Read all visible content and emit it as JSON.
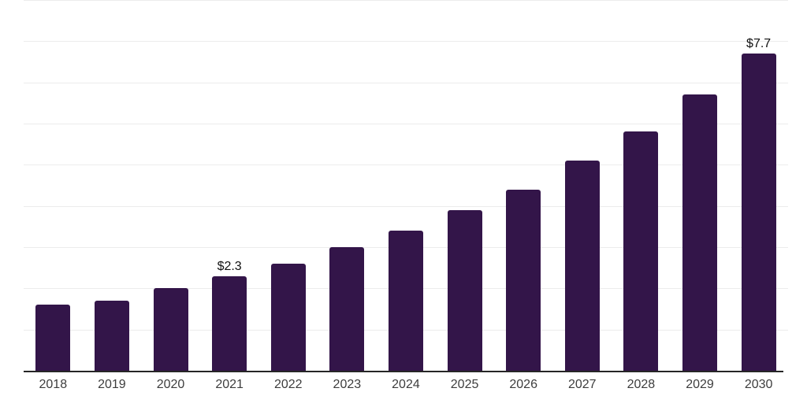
{
  "chart_data": {
    "type": "bar",
    "title": "",
    "xlabel": "",
    "ylabel": "",
    "categories": [
      "2018",
      "2019",
      "2020",
      "2021",
      "2022",
      "2023",
      "2024",
      "2025",
      "2026",
      "2027",
      "2028",
      "2029",
      "2030"
    ],
    "values": [
      1.6,
      1.7,
      2.0,
      2.3,
      2.6,
      3.0,
      3.4,
      3.9,
      4.4,
      5.1,
      5.8,
      6.7,
      7.7
    ],
    "value_labels": {
      "2021": "$2.3",
      "2030": "$7.7"
    },
    "ylim": [
      0,
      9
    ],
    "gridline_interval": 1,
    "grid": true,
    "legend": false,
    "colors": {
      "bar": "#331549",
      "gridline": "#ececec",
      "axis_line": "#262626",
      "tick_label": "#3d3d3d",
      "value_label": "#111111",
      "background": "#ffffff"
    }
  }
}
